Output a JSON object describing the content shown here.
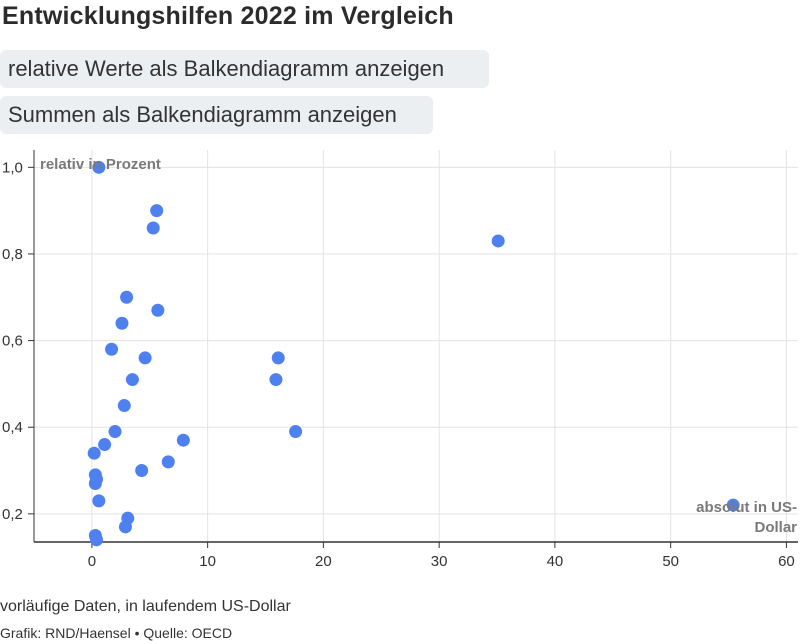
{
  "header": {
    "title": "Entwicklungshilfen 2022 im Vergleich"
  },
  "toggles": {
    "relative_label": "relative Werte als Balkendiagramm anzeigen",
    "sum_label": "Summen als Balkendiagramm anzeigen"
  },
  "footer": {
    "note": "vorläufige Daten, in laufendem US-Dollar",
    "credit": "Grafik: RND/Haensel • Quelle: OECD"
  },
  "colors": {
    "point": "#4f80f0",
    "grid": "#e3e3e3",
    "axis": "#333333"
  },
  "chart_data": {
    "type": "scatter",
    "title": "Entwicklungshilfen 2022 im Vergleich",
    "xlabel_lines": [
      "absolut in US-",
      "Dollar"
    ],
    "ylabel": "relativ in Prozent",
    "xlim": [
      -5,
      61
    ],
    "ylim": [
      0.135,
      1.04
    ],
    "xticks": [
      0,
      10,
      20,
      30,
      40,
      50,
      60
    ],
    "xtick_labels": [
      "0",
      "10",
      "20",
      "30",
      "40",
      "50",
      "60"
    ],
    "yticks": [
      0.2,
      0.4,
      0.6,
      0.8,
      1.0
    ],
    "ytick_labels": [
      "0,2",
      "0,4",
      "0,6",
      "0,8",
      "1,0"
    ],
    "grid": true,
    "points": [
      {
        "x": 0.6,
        "y": 1.0
      },
      {
        "x": 5.6,
        "y": 0.9
      },
      {
        "x": 5.3,
        "y": 0.86
      },
      {
        "x": 35.1,
        "y": 0.83
      },
      {
        "x": 3.0,
        "y": 0.7
      },
      {
        "x": 5.7,
        "y": 0.67
      },
      {
        "x": 2.6,
        "y": 0.64
      },
      {
        "x": 1.7,
        "y": 0.58
      },
      {
        "x": 4.6,
        "y": 0.56
      },
      {
        "x": 16.1,
        "y": 0.56
      },
      {
        "x": 3.5,
        "y": 0.51
      },
      {
        "x": 15.9,
        "y": 0.51
      },
      {
        "x": 2.8,
        "y": 0.45
      },
      {
        "x": 2.0,
        "y": 0.39
      },
      {
        "x": 17.6,
        "y": 0.39
      },
      {
        "x": 7.9,
        "y": 0.37
      },
      {
        "x": 1.1,
        "y": 0.36
      },
      {
        "x": 0.2,
        "y": 0.34
      },
      {
        "x": 6.6,
        "y": 0.32
      },
      {
        "x": 4.3,
        "y": 0.3
      },
      {
        "x": 0.3,
        "y": 0.29
      },
      {
        "x": 0.4,
        "y": 0.28
      },
      {
        "x": 0.3,
        "y": 0.27
      },
      {
        "x": 0.6,
        "y": 0.23
      },
      {
        "x": 55.4,
        "y": 0.22
      },
      {
        "x": 3.1,
        "y": 0.19
      },
      {
        "x": 2.9,
        "y": 0.17
      },
      {
        "x": 0.3,
        "y": 0.15
      },
      {
        "x": 0.4,
        "y": 0.14
      }
    ]
  }
}
